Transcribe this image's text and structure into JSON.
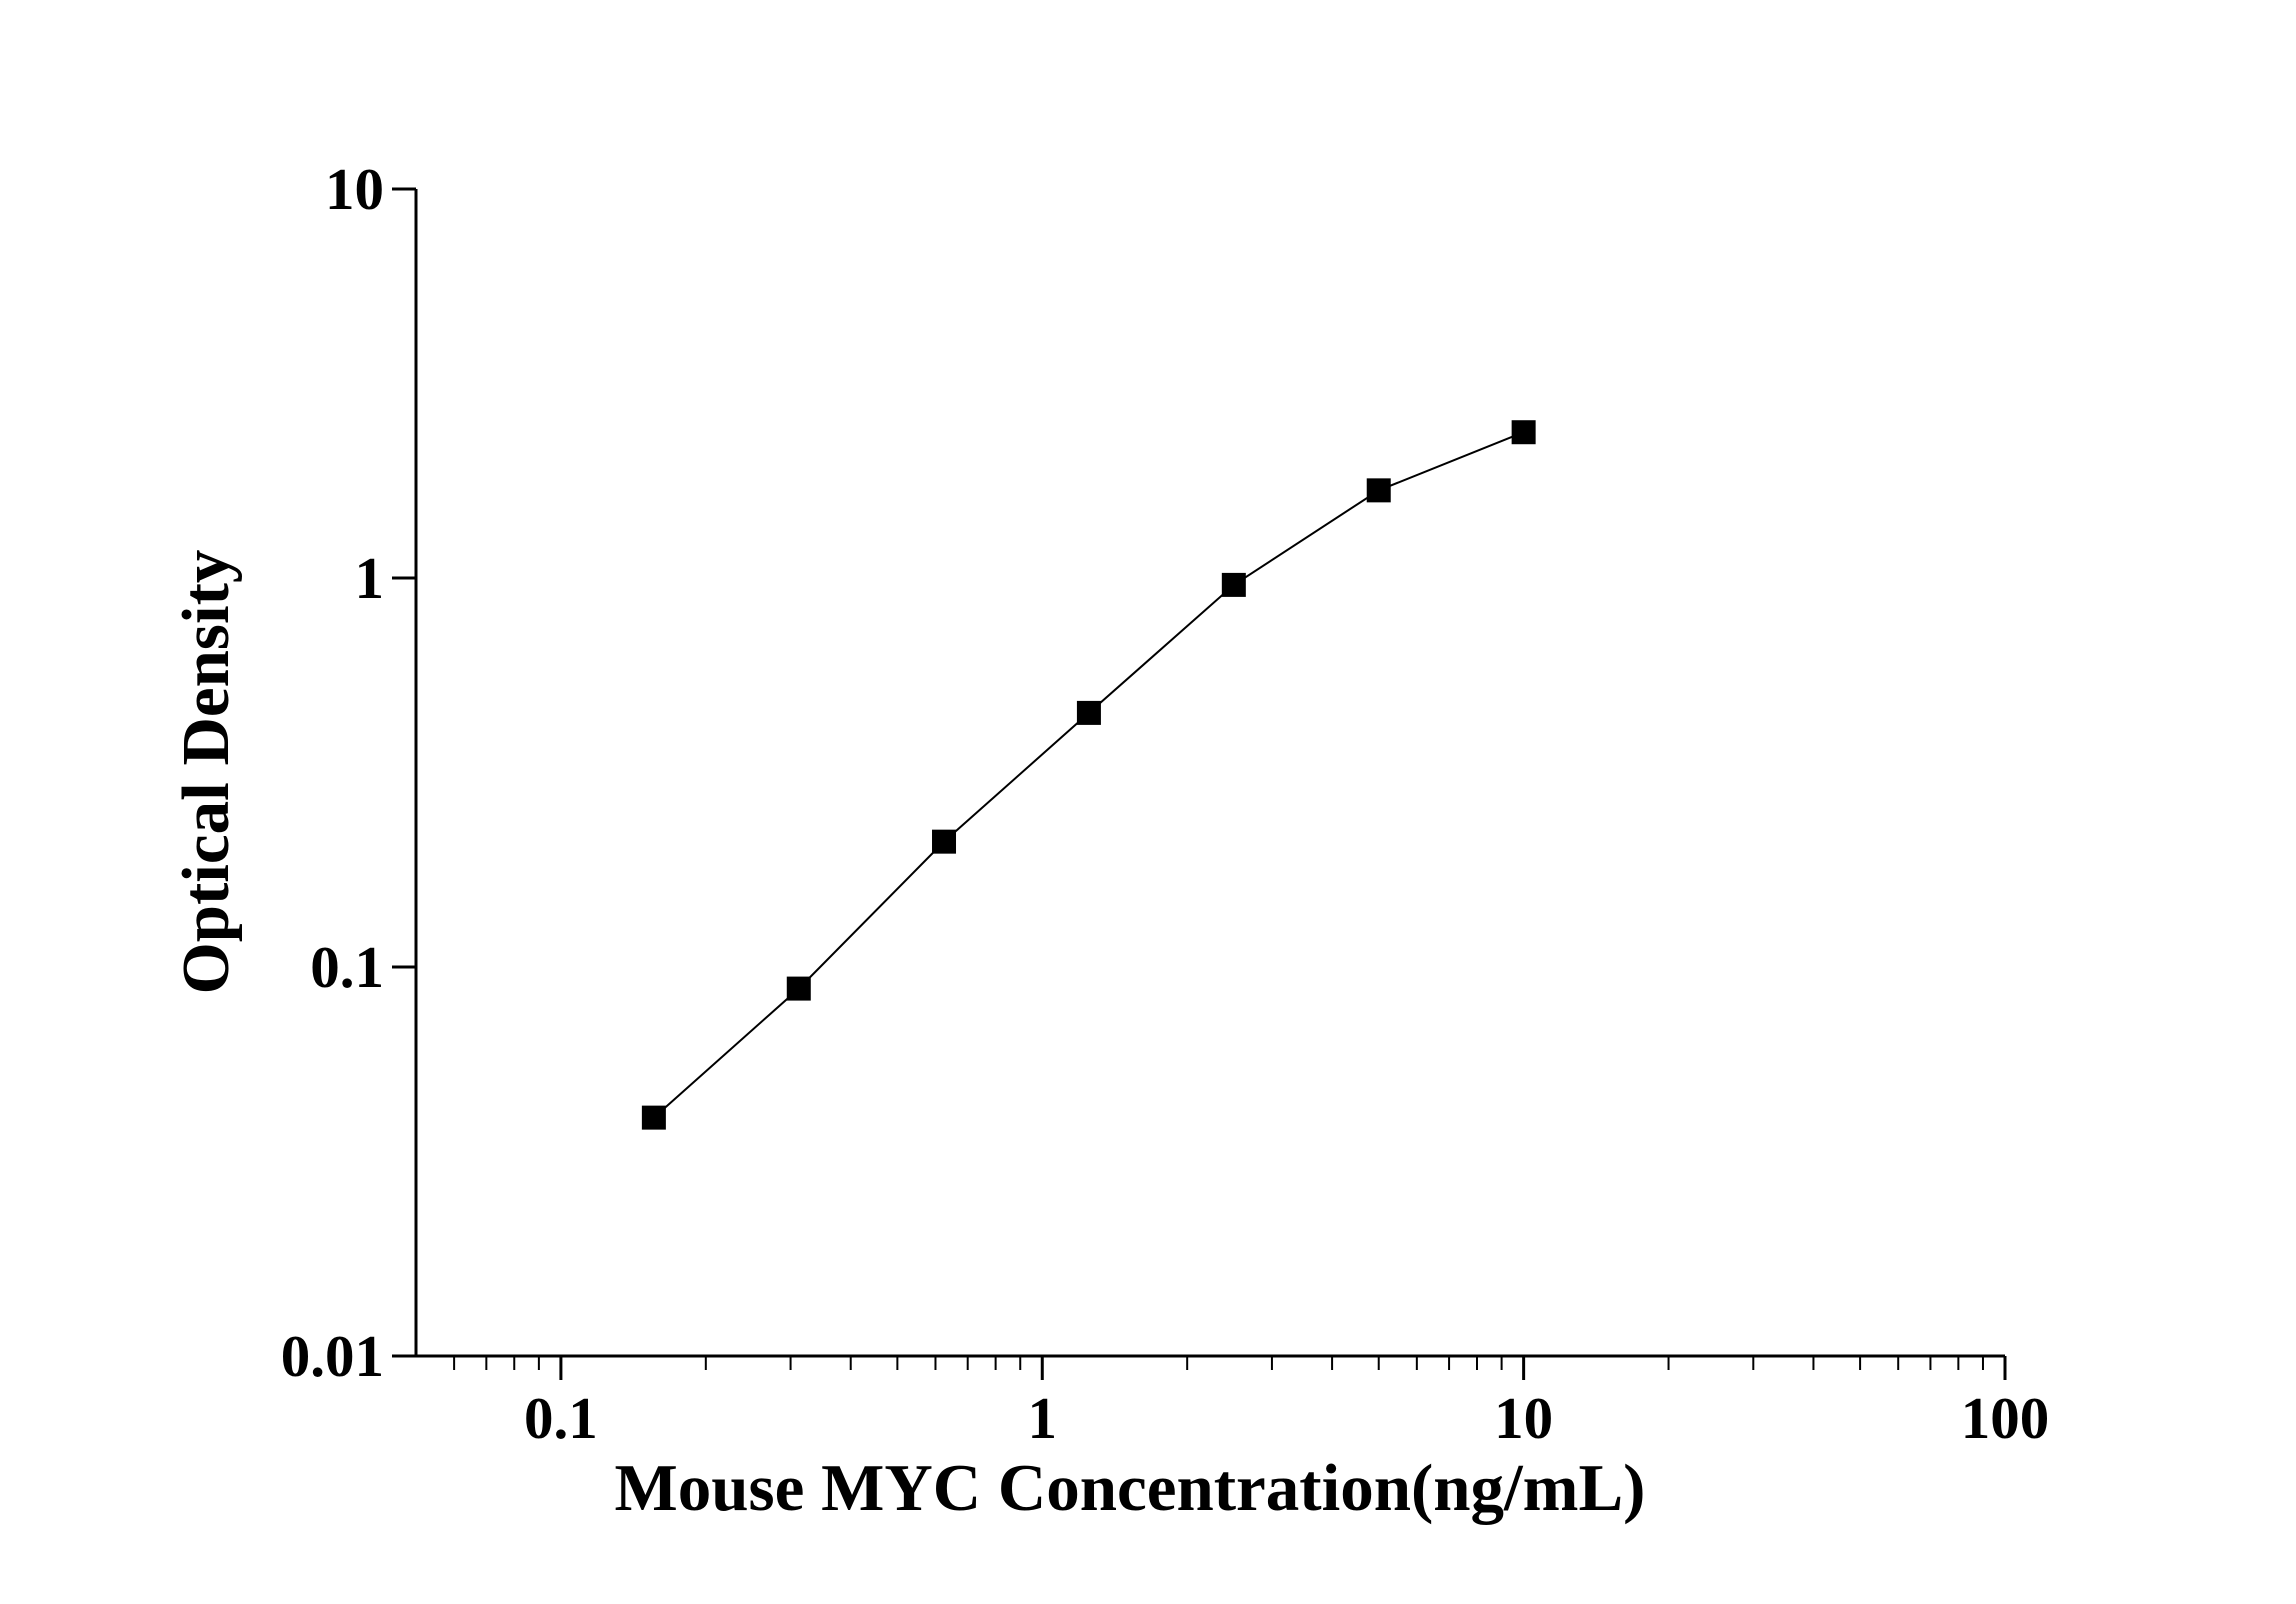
{
  "chart_data": {
    "type": "line",
    "x_label": "Mouse MYC Concentration(ng/mL)",
    "y_label": "Optical Density",
    "x": [
      0.156,
      0.312,
      0.625,
      1.25,
      2.5,
      5,
      10
    ],
    "series": [
      {
        "color": "#000000",
        "values": [
          0.041,
          0.088,
          0.21,
          0.45,
          0.96,
          1.68,
          2.37
        ]
      }
    ],
    "xlim": [
      0.05,
      100
    ],
    "ylim": [
      0.01,
      10
    ],
    "xticks": [
      0.1,
      1,
      10,
      100
    ],
    "yticks": [
      0.01,
      0.1,
      1,
      10
    ],
    "xscale": "log",
    "yscale": "log",
    "grid": false,
    "marker": "square"
  }
}
